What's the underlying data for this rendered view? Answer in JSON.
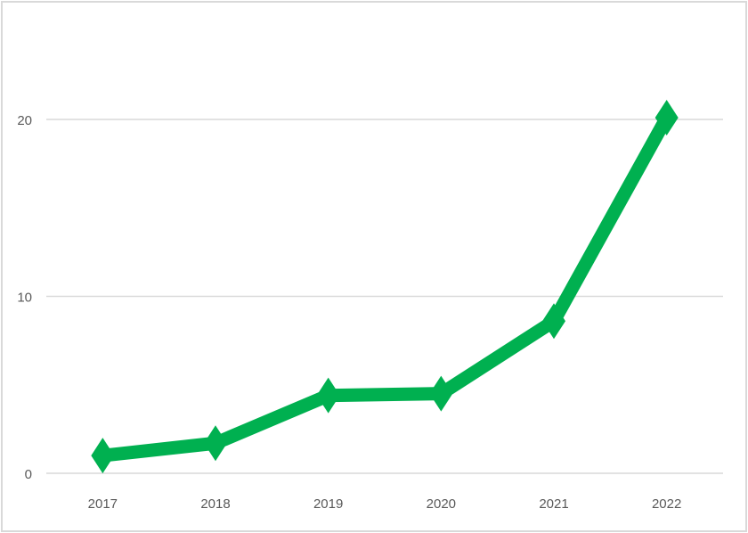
{
  "chart_data": {
    "type": "line",
    "title": "",
    "xlabel": "",
    "ylabel": "",
    "categories": [
      "2017",
      "2018",
      "2019",
      "2020",
      "2021",
      "2022"
    ],
    "series": [
      {
        "values": [
          1.0,
          1.7,
          4.4,
          4.5,
          8.6,
          20.1
        ],
        "color": "#00b050",
        "marker": "diamond"
      }
    ],
    "ylim": [
      0,
      20
    ],
    "yticks": [
      "0",
      "10",
      "20"
    ],
    "grid": true,
    "legend": "none"
  }
}
